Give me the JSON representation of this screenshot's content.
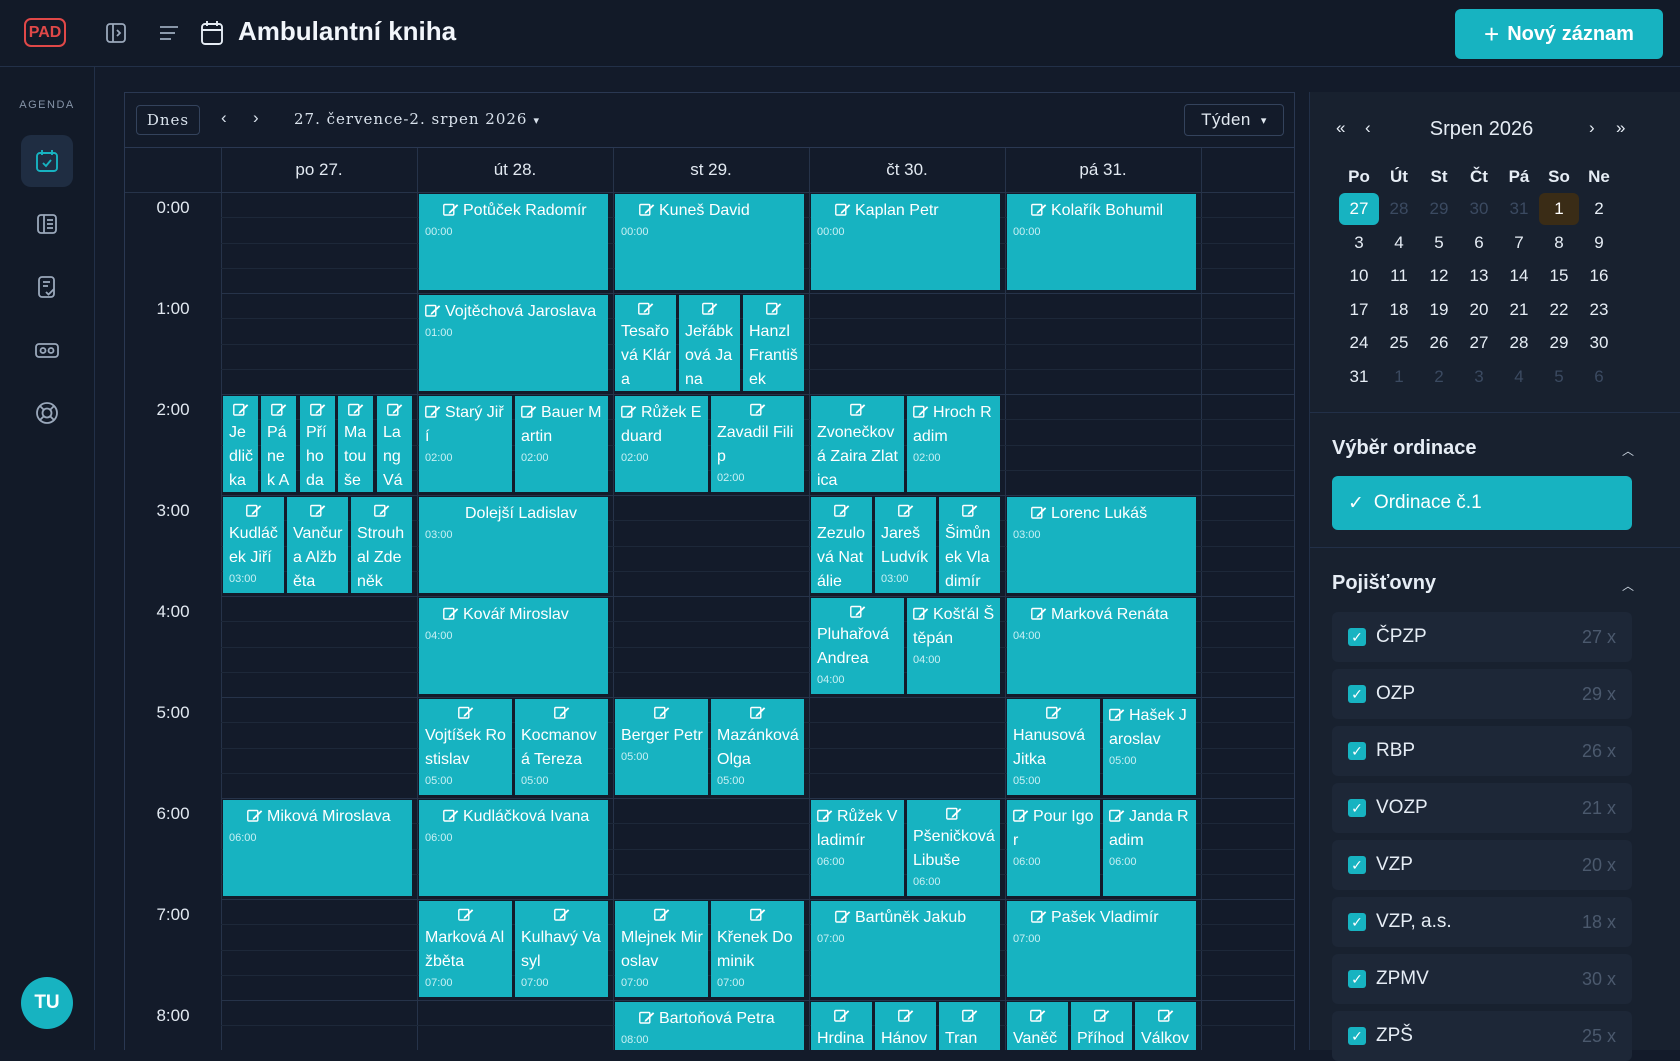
{
  "header": {
    "logo_text": "PAD",
    "title": "Ambulantní kniha",
    "new_button": "Nový záznam"
  },
  "rail": {
    "section_label": "AGENDA",
    "avatar_initials": "TU"
  },
  "toolbar": {
    "today": "Dnes",
    "prev": "‹",
    "next": "›",
    "range": "27. července-2. srpen 2026",
    "view": "Týden"
  },
  "days": [
    "po 27.",
    "út 28.",
    "st 29.",
    "čt 30.",
    "pá 31."
  ],
  "hours": [
    "0:00",
    "1:00",
    "2:00",
    "3:00",
    "4:00",
    "5:00",
    "6:00",
    "7:00",
    "8:00"
  ],
  "events": [
    {
      "day": 1,
      "hour": 0,
      "col": 0,
      "cols": 1,
      "name": "Potůček Radomír",
      "time": "00:00",
      "lay": "single"
    },
    {
      "day": 2,
      "hour": 0,
      "col": 0,
      "cols": 1,
      "name": "Kuneš David",
      "time": "00:00",
      "lay": "single"
    },
    {
      "day": 3,
      "hour": 0,
      "col": 0,
      "cols": 1,
      "name": "Kaplan Petr",
      "time": "00:00",
      "lay": "single"
    },
    {
      "day": 4,
      "hour": 0,
      "col": 0,
      "cols": 1,
      "name": "Kolařík Bohumil",
      "time": "00:00",
      "lay": "single"
    },
    {
      "day": 1,
      "hour": 1,
      "col": 0,
      "cols": 1,
      "name": "Vojtěchová Jaroslava",
      "time": "01:00",
      "lay": "inline"
    },
    {
      "day": 2,
      "hour": 1,
      "col": 0,
      "cols": 3,
      "name": "Tesařová Klára",
      "time": "01:00",
      "lay": "stack"
    },
    {
      "day": 2,
      "hour": 1,
      "col": 1,
      "cols": 3,
      "name": "Jeřábková Jana",
      "time": "01:00",
      "lay": "stack"
    },
    {
      "day": 2,
      "hour": 1,
      "col": 2,
      "cols": 3,
      "name": "Hanzl František",
      "time": "01:00",
      "lay": "stack"
    },
    {
      "day": 0,
      "hour": 2,
      "col": 0,
      "cols": 5,
      "name": "Jedlička Viktor",
      "time": "02:00",
      "lay": "stack"
    },
    {
      "day": 0,
      "hour": 2,
      "col": 1,
      "cols": 5,
      "name": "Pánek Antonín",
      "time": "02:00",
      "lay": "stack"
    },
    {
      "day": 0,
      "hour": 2,
      "col": 2,
      "cols": 5,
      "name": "Příhoda Adam",
      "time": "02:00",
      "lay": "stack"
    },
    {
      "day": 0,
      "hour": 2,
      "col": 3,
      "cols": 5,
      "name": "Matoušek Růžena",
      "time": "02:00",
      "lay": "stack"
    },
    {
      "day": 0,
      "hour": 2,
      "col": 4,
      "cols": 5,
      "name": "Lang Václav",
      "time": "02:00",
      "lay": "stack"
    },
    {
      "day": 1,
      "hour": 2,
      "col": 0,
      "cols": 2,
      "name": "Starý Jiří",
      "time": "02:00",
      "lay": "inline"
    },
    {
      "day": 1,
      "hour": 2,
      "col": 1,
      "cols": 2,
      "name": "Bauer Martin",
      "time": "02:00",
      "lay": "inline"
    },
    {
      "day": 2,
      "hour": 2,
      "col": 0,
      "cols": 2,
      "name": "Růžek Eduard",
      "time": "02:00",
      "lay": "inline"
    },
    {
      "day": 2,
      "hour": 2,
      "col": 1,
      "cols": 2,
      "name": "Zavadil Filip",
      "time": "02:00",
      "lay": "stack"
    },
    {
      "day": 3,
      "hour": 2,
      "col": 0,
      "cols": 2,
      "name": "Zvonečková Zaira Zlatica",
      "time": "02:00",
      "lay": "stack"
    },
    {
      "day": 3,
      "hour": 2,
      "col": 1,
      "cols": 2,
      "name": "Hroch Radim",
      "time": "02:00",
      "lay": "inline"
    },
    {
      "day": 0,
      "hour": 3,
      "col": 0,
      "cols": 3,
      "name": "Kudláček Jiří",
      "time": "03:00",
      "lay": "stack"
    },
    {
      "day": 0,
      "hour": 3,
      "col": 1,
      "cols": 3,
      "name": "Vančura Alžběta",
      "time": "03:00",
      "lay": "stack"
    },
    {
      "day": 0,
      "hour": 3,
      "col": 2,
      "cols": 3,
      "name": "Strouhal Zdeněk",
      "time": "03:00",
      "lay": "stack"
    },
    {
      "day": 1,
      "hour": 3,
      "col": 0,
      "cols": 1,
      "name": "Dolejší Ladislav",
      "time": "03:00",
      "lay": "plain"
    },
    {
      "day": 3,
      "hour": 3,
      "col": 0,
      "cols": 3,
      "name": "Zezulová Natálie",
      "time": "03:00",
      "lay": "stack"
    },
    {
      "day": 3,
      "hour": 3,
      "col": 1,
      "cols": 3,
      "name": "Jareš Ludvík",
      "time": "03:00",
      "lay": "stack"
    },
    {
      "day": 3,
      "hour": 3,
      "col": 2,
      "cols": 3,
      "name": "Šimůnek Vladimír",
      "time": "03:00",
      "lay": "stack"
    },
    {
      "day": 4,
      "hour": 3,
      "col": 0,
      "cols": 1,
      "name": "Lorenc Lukáš",
      "time": "03:00",
      "lay": "single"
    },
    {
      "day": 1,
      "hour": 4,
      "col": 0,
      "cols": 1,
      "name": "Kovář Miroslav",
      "time": "04:00",
      "lay": "single"
    },
    {
      "day": 3,
      "hour": 4,
      "col": 0,
      "cols": 2,
      "name": "Pluhařová Andrea",
      "time": "04:00",
      "lay": "stack"
    },
    {
      "day": 3,
      "hour": 4,
      "col": 1,
      "cols": 2,
      "name": "Košťál Štěpán",
      "time": "04:00",
      "lay": "inline"
    },
    {
      "day": 4,
      "hour": 4,
      "col": 0,
      "cols": 1,
      "name": "Marková Renáta",
      "time": "04:00",
      "lay": "single"
    },
    {
      "day": 1,
      "hour": 5,
      "col": 0,
      "cols": 2,
      "name": "Vojtíšek Rostislav",
      "time": "05:00",
      "lay": "stack"
    },
    {
      "day": 1,
      "hour": 5,
      "col": 1,
      "cols": 2,
      "name": "Kocmanová Tereza",
      "time": "05:00",
      "lay": "stack"
    },
    {
      "day": 2,
      "hour": 5,
      "col": 0,
      "cols": 2,
      "name": "Berger Petr",
      "time": "05:00",
      "lay": "stack"
    },
    {
      "day": 2,
      "hour": 5,
      "col": 1,
      "cols": 2,
      "name": "Mazánková Olga",
      "time": "05:00",
      "lay": "stack"
    },
    {
      "day": 4,
      "hour": 5,
      "col": 0,
      "cols": 2,
      "name": "Hanusová Jitka",
      "time": "05:00",
      "lay": "stack"
    },
    {
      "day": 4,
      "hour": 5,
      "col": 1,
      "cols": 2,
      "name": "Hašek Jaroslav",
      "time": "05:00",
      "lay": "inline"
    },
    {
      "day": 0,
      "hour": 6,
      "col": 0,
      "cols": 1,
      "name": "Miková Miroslava",
      "time": "06:00",
      "lay": "single"
    },
    {
      "day": 1,
      "hour": 6,
      "col": 0,
      "cols": 1,
      "name": "Kudláčková Ivana",
      "time": "06:00",
      "lay": "single"
    },
    {
      "day": 3,
      "hour": 6,
      "col": 0,
      "cols": 2,
      "name": "Růžek Vladimír",
      "time": "06:00",
      "lay": "inline"
    },
    {
      "day": 3,
      "hour": 6,
      "col": 1,
      "cols": 2,
      "name": "Pšeničková Libuše",
      "time": "06:00",
      "lay": "stack"
    },
    {
      "day": 4,
      "hour": 6,
      "col": 0,
      "cols": 2,
      "name": "Pour Igor",
      "time": "06:00",
      "lay": "inline"
    },
    {
      "day": 4,
      "hour": 6,
      "col": 1,
      "cols": 2,
      "name": "Janda Radim",
      "time": "06:00",
      "lay": "inline"
    },
    {
      "day": 1,
      "hour": 7,
      "col": 0,
      "cols": 2,
      "name": "Marková Alžběta",
      "time": "07:00",
      "lay": "stack"
    },
    {
      "day": 1,
      "hour": 7,
      "col": 1,
      "cols": 2,
      "name": "Kulhavý Vasyl",
      "time": "07:00",
      "lay": "stack"
    },
    {
      "day": 2,
      "hour": 7,
      "col": 0,
      "cols": 2,
      "name": "Mlejnek Miroslav",
      "time": "07:00",
      "lay": "stack"
    },
    {
      "day": 2,
      "hour": 7,
      "col": 1,
      "cols": 2,
      "name": "Křenek Dominik",
      "time": "07:00",
      "lay": "stack"
    },
    {
      "day": 3,
      "hour": 7,
      "col": 0,
      "cols": 1,
      "name": "Bartůněk Jakub",
      "time": "07:00",
      "lay": "single"
    },
    {
      "day": 4,
      "hour": 7,
      "col": 0,
      "cols": 1,
      "name": "Pašek Vladimír",
      "time": "07:00",
      "lay": "single"
    },
    {
      "day": 2,
      "hour": 8,
      "col": 0,
      "cols": 1,
      "name": "Bartoňová Petra",
      "time": "08:00",
      "lay": "single"
    },
    {
      "day": 3,
      "hour": 8,
      "col": 0,
      "cols": 3,
      "name": "Hrdina",
      "time": "08:00",
      "lay": "stack"
    },
    {
      "day": 3,
      "hour": 8,
      "col": 1,
      "cols": 3,
      "name": "Hánová",
      "time": "08:00",
      "lay": "stack"
    },
    {
      "day": 3,
      "hour": 8,
      "col": 2,
      "cols": 3,
      "name": "Tran",
      "time": "08:00",
      "lay": "stack"
    },
    {
      "day": 4,
      "hour": 8,
      "col": 0,
      "cols": 3,
      "name": "Vaněček",
      "time": "08:00",
      "lay": "stack"
    },
    {
      "day": 4,
      "hour": 8,
      "col": 1,
      "cols": 3,
      "name": "Příhoda",
      "time": "08:00",
      "lay": "stack"
    },
    {
      "day": 4,
      "hour": 8,
      "col": 2,
      "cols": 3,
      "name": "Válková",
      "time": "08:00",
      "lay": "stack"
    }
  ],
  "mini_calendar": {
    "title": "Srpen 2026",
    "nav": {
      "prev_year": "«",
      "prev": "‹",
      "next": "›",
      "next_year": "»"
    },
    "weekdays": [
      "Po",
      "Út",
      "St",
      "Čt",
      "Pá",
      "So",
      "Ne"
    ],
    "days": [
      {
        "d": "27",
        "other": false,
        "today": true
      },
      {
        "d": "28",
        "other": true
      },
      {
        "d": "29",
        "other": true
      },
      {
        "d": "30",
        "other": true
      },
      {
        "d": "31",
        "other": true
      },
      {
        "d": "1",
        "other": false,
        "marked": true
      },
      {
        "d": "2",
        "other": false
      },
      {
        "d": "3"
      },
      {
        "d": "4"
      },
      {
        "d": "5"
      },
      {
        "d": "6"
      },
      {
        "d": "7"
      },
      {
        "d": "8"
      },
      {
        "d": "9"
      },
      {
        "d": "10"
      },
      {
        "d": "11"
      },
      {
        "d": "12"
      },
      {
        "d": "13"
      },
      {
        "d": "14"
      },
      {
        "d": "15"
      },
      {
        "d": "16"
      },
      {
        "d": "17"
      },
      {
        "d": "18"
      },
      {
        "d": "19"
      },
      {
        "d": "20"
      },
      {
        "d": "21"
      },
      {
        "d": "22"
      },
      {
        "d": "23"
      },
      {
        "d": "24"
      },
      {
        "d": "25"
      },
      {
        "d": "26"
      },
      {
        "d": "27"
      },
      {
        "d": "28"
      },
      {
        "d": "29"
      },
      {
        "d": "30"
      },
      {
        "d": "31"
      },
      {
        "d": "1",
        "other": true
      },
      {
        "d": "2",
        "other": true
      },
      {
        "d": "3",
        "other": true
      },
      {
        "d": "4",
        "other": true
      },
      {
        "d": "5",
        "other": true
      },
      {
        "d": "6",
        "other": true
      }
    ]
  },
  "office": {
    "title": "Výběr ordinace",
    "selected": "Ordinace č.1"
  },
  "insurers": {
    "title": "Pojišťovny",
    "items": [
      {
        "name": "ČPZP",
        "count": "27 x"
      },
      {
        "name": "OZP",
        "count": "29 x"
      },
      {
        "name": "RBP",
        "count": "26 x"
      },
      {
        "name": "VOZP",
        "count": "21 x"
      },
      {
        "name": "VZP",
        "count": "20 x"
      },
      {
        "name": "VZP, a.s.",
        "count": "18 x"
      },
      {
        "name": "ZPMV",
        "count": "30 x"
      },
      {
        "name": "ZPŠ",
        "count": "25 x"
      }
    ]
  },
  "colors": {
    "accent": "#17b3c1",
    "background": "#131b2a",
    "panel": "#18212f",
    "marked_day": "#3a2c16"
  }
}
